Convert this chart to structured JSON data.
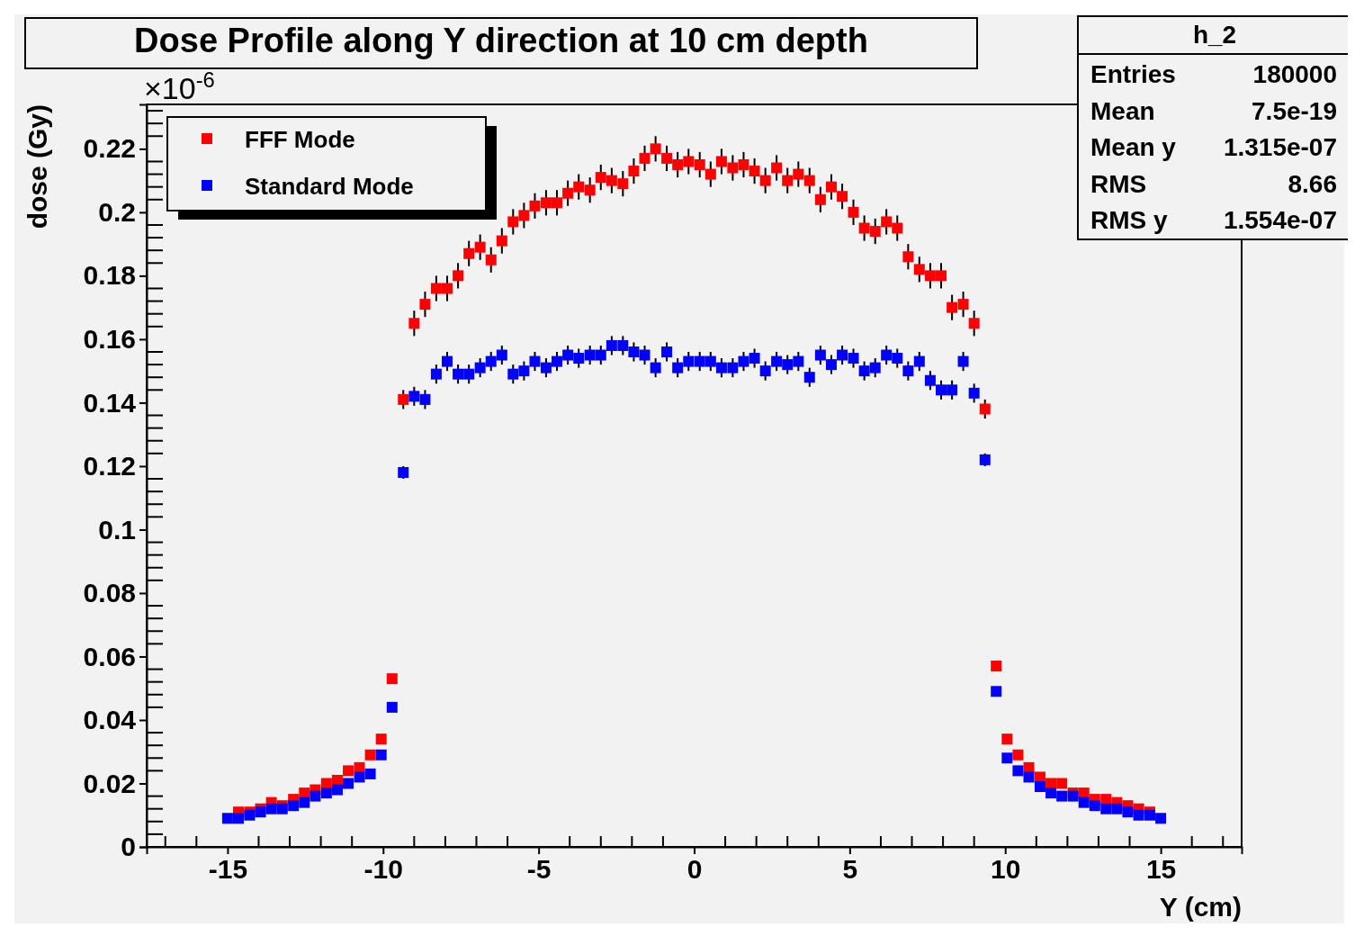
{
  "chart_data": {
    "type": "scatter",
    "title": "Dose Profile along Y direction at 10 cm depth",
    "xlabel": "Y (cm)",
    "ylabel": "dose (Gy)",
    "x": [
      -15,
      -14.65,
      -14.29,
      -13.94,
      -13.59,
      -13.24,
      -12.88,
      -12.53,
      -12.18,
      -11.82,
      -11.47,
      -11.12,
      -10.76,
      -10.41,
      -10.06,
      -9.71,
      -9.35,
      -9,
      -8.65,
      -8.29,
      -7.94,
      -7.59,
      -7.24,
      -6.88,
      -6.53,
      -6.18,
      -5.82,
      -5.47,
      -5.12,
      -4.76,
      -4.41,
      -4.06,
      -3.71,
      -3.35,
      -3,
      -2.65,
      -2.29,
      -1.94,
      -1.59,
      -1.24,
      -0.88,
      -0.53,
      -0.18,
      0.18,
      0.53,
      0.88,
      1.24,
      1.59,
      1.94,
      2.29,
      2.65,
      3,
      3.35,
      3.71,
      4.06,
      4.41,
      4.76,
      5.12,
      5.47,
      5.82,
      6.18,
      6.53,
      6.88,
      7.24,
      7.59,
      7.94,
      8.29,
      8.65,
      9,
      9.35,
      9.71,
      10.06,
      10.41,
      10.76,
      11.12,
      11.47,
      11.82,
      12.18,
      12.53,
      12.88,
      13.24,
      13.59,
      13.94,
      14.29,
      14.65,
      15
    ],
    "series": [
      {
        "name": "FFF Mode",
        "color": "#ff0000",
        "values": [
          null,
          0.011,
          0.011,
          0.012,
          0.014,
          0.013,
          0.015,
          0.017,
          0.018,
          0.02,
          0.021,
          0.024,
          0.025,
          0.029,
          0.034,
          0.053,
          0.141,
          0.165,
          0.171,
          0.176,
          0.176,
          0.18,
          0.187,
          0.189,
          0.185,
          0.191,
          0.197,
          0.199,
          0.202,
          0.203,
          0.203,
          0.206,
          0.208,
          0.207,
          0.211,
          0.21,
          0.209,
          0.213,
          0.217,
          0.22,
          0.217,
          0.215,
          0.216,
          0.215,
          0.212,
          0.216,
          0.214,
          0.215,
          0.213,
          0.21,
          0.214,
          0.21,
          0.212,
          0.21,
          0.204,
          0.208,
          0.205,
          0.2,
          0.195,
          0.194,
          0.197,
          0.195,
          0.186,
          0.182,
          0.18,
          0.18,
          0.17,
          0.171,
          0.165,
          0.138,
          0.057,
          0.034,
          0.029,
          0.025,
          0.022,
          0.02,
          0.02,
          0.017,
          0.017,
          0.015,
          0.015,
          0.014,
          0.013,
          0.012,
          0.011,
          null
        ],
        "errors": [
          null,
          null,
          null,
          null,
          null,
          null,
          null,
          null,
          null,
          null,
          null,
          null,
          null,
          null,
          null,
          null,
          0.003,
          0.004,
          0.004,
          0.004,
          0.004,
          0.004,
          0.004,
          0.004,
          0.004,
          0.004,
          0.004,
          0.004,
          0.004,
          0.004,
          0.004,
          0.004,
          0.004,
          0.004,
          0.004,
          0.004,
          0.004,
          0.004,
          0.004,
          0.004,
          0.004,
          0.004,
          0.004,
          0.004,
          0.004,
          0.004,
          0.004,
          0.004,
          0.004,
          0.004,
          0.004,
          0.004,
          0.004,
          0.004,
          0.004,
          0.004,
          0.004,
          0.004,
          0.004,
          0.004,
          0.004,
          0.004,
          0.004,
          0.004,
          0.004,
          0.004,
          0.004,
          0.004,
          0.004,
          0.003,
          null,
          null,
          null,
          null,
          null,
          null,
          null,
          null,
          null,
          null,
          null,
          null,
          null,
          null,
          null,
          null
        ]
      },
      {
        "name": "Standard Mode",
        "color": "#0000ff",
        "values": [
          0.009,
          0.009,
          0.01,
          0.011,
          0.012,
          0.012,
          0.013,
          0.014,
          0.016,
          0.017,
          0.018,
          0.02,
          0.022,
          0.023,
          0.029,
          0.044,
          0.118,
          0.142,
          0.141,
          0.149,
          0.153,
          0.149,
          0.149,
          0.151,
          0.153,
          0.155,
          0.149,
          0.15,
          0.153,
          0.151,
          0.153,
          0.155,
          0.154,
          0.155,
          0.155,
          0.158,
          0.158,
          0.156,
          0.155,
          0.151,
          0.156,
          0.151,
          0.153,
          0.153,
          0.153,
          0.151,
          0.151,
          0.153,
          0.154,
          0.15,
          0.153,
          0.152,
          0.153,
          0.148,
          0.155,
          0.152,
          0.155,
          0.154,
          0.15,
          0.151,
          0.155,
          0.154,
          0.15,
          0.153,
          0.147,
          0.144,
          0.144,
          0.153,
          0.143,
          0.122,
          0.049,
          0.028,
          0.024,
          0.022,
          0.019,
          0.017,
          0.016,
          0.016,
          0.014,
          0.013,
          0.012,
          0.012,
          0.011,
          0.01,
          0.01,
          0.009
        ],
        "errors": [
          null,
          null,
          null,
          null,
          null,
          null,
          null,
          null,
          null,
          null,
          null,
          null,
          null,
          null,
          null,
          null,
          0.002,
          0.003,
          0.003,
          0.003,
          0.003,
          0.003,
          0.003,
          0.003,
          0.003,
          0.003,
          0.003,
          0.003,
          0.003,
          0.003,
          0.003,
          0.003,
          0.003,
          0.003,
          0.003,
          0.003,
          0.003,
          0.003,
          0.003,
          0.003,
          0.003,
          0.003,
          0.003,
          0.003,
          0.003,
          0.003,
          0.003,
          0.003,
          0.003,
          0.003,
          0.003,
          0.003,
          0.003,
          0.003,
          0.003,
          0.003,
          0.003,
          0.003,
          0.003,
          0.003,
          0.003,
          0.003,
          0.003,
          0.003,
          0.003,
          0.003,
          0.003,
          0.003,
          0.003,
          0.002,
          null,
          null,
          null,
          null,
          null,
          null,
          null,
          null,
          null,
          null,
          null,
          null,
          null,
          null,
          null,
          null
        ]
      }
    ],
    "xlim": [
      -17.6,
      17.6
    ],
    "xticks": [
      -15,
      -10,
      -5,
      0,
      5,
      10,
      15
    ],
    "ylim": [
      0,
      0.234
    ],
    "yticks": [
      0,
      0.02,
      0.04,
      0.06,
      0.08,
      0.1,
      0.12,
      0.14,
      0.16,
      0.18,
      0.2,
      0.22
    ],
    "marker": "square",
    "legend": "top left",
    "grid": false,
    "annotations": [
      "×10$^{-6}$",
      "h_2",
      "Entries",
      "180000",
      "Mean",
      "7.5e-19",
      "Mean y",
      "1.315e-07",
      "RMS",
      "8.66",
      "RMS y",
      "1.554e-07"
    ]
  }
}
